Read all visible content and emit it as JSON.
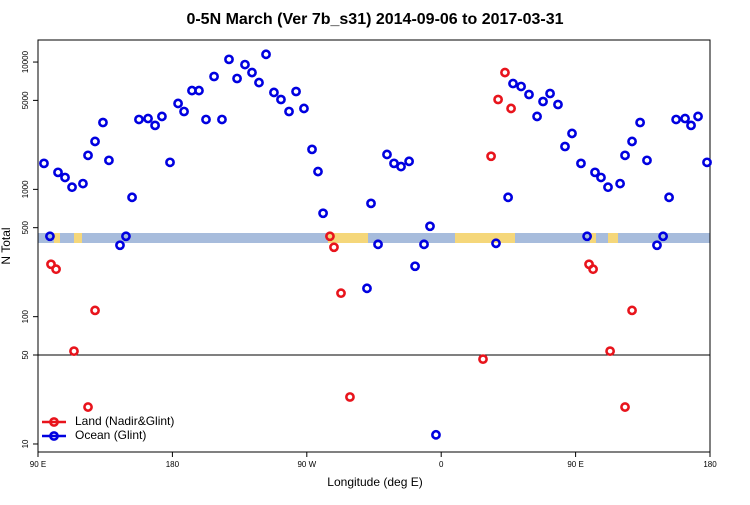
{
  "chart_data": {
    "type": "scatter",
    "title": "0-5N March (Ver 7b_s31)   2014-09-06 to 2017-03-31",
    "x_label": "Longitude (deg E)",
    "y_label": "N Total",
    "log_y": true,
    "legend": "lower left",
    "hline": 50,
    "xlim": [
      90,
      540
    ],
    "ylim": [
      8.65,
      14900
    ],
    "xticks": [
      {
        "value": 90,
        "label": "90 E"
      },
      180,
      {
        "value": 270,
        "label": "90 W"
      },
      {
        "value": 360,
        "label": "0"
      },
      {
        "value": 450,
        "label": "90 E"
      },
      {
        "value": 540,
        "label": "180"
      }
    ],
    "yticks": [
      10,
      50,
      100,
      500,
      1000,
      5000,
      10000
    ],
    "series": [
      {
        "name": "Land (Nadir&Glint)",
        "color": "#e8141c",
        "x": [
          98.7,
          102.1,
          114.1,
          123.5,
          128.2,
          285.5,
          288.2,
          292.9,
          298.9,
          388.0,
          393.4,
          398.1,
          402.7,
          406.8,
          459.0,
          461.7,
          473.1,
          483.1,
          487.8
        ],
        "values": [
          258,
          236,
          53.6,
          19.5,
          112,
          428,
          351,
          153,
          23.4,
          46.4,
          1820,
          5080,
          8270,
          4320,
          258,
          236,
          53.6,
          19.5,
          112
        ]
      },
      {
        "name": "Ocean (Glint)",
        "color": "#0000e0",
        "x": [
          94.0,
          98.0,
          103.4,
          108.1,
          112.8,
          120.1,
          123.5,
          128.2,
          133.5,
          137.5,
          144.9,
          148.9,
          153.0,
          157.6,
          163.7,
          168.4,
          173.0,
          178.4,
          183.8,
          187.8,
          193.1,
          197.8,
          202.5,
          207.9,
          213.2,
          217.9,
          223.3,
          228.6,
          233.3,
          238.0,
          242.7,
          248.0,
          252.7,
          258.1,
          262.8,
          268.1,
          273.5,
          277.5,
          280.9,
          310.3,
          313.0,
          317.7,
          323.7,
          328.4,
          333.1,
          338.5,
          342.5,
          348.5,
          352.5,
          356.5,
          396.7,
          404.8,
          408.1,
          413.5,
          418.8,
          424.2,
          428.2,
          432.9,
          438.2,
          442.9,
          447.6,
          453.6,
          457.7,
          463.0,
          467.0,
          471.7,
          479.8,
          483.1,
          487.8,
          493.2,
          497.8,
          504.5,
          508.6,
          512.6,
          517.3,
          523.3,
          527.3,
          532.0,
          538.0
        ],
        "values": [
          1600,
          428,
          1360,
          1240,
          1040,
          1110,
          1850,
          2380,
          3350,
          1690,
          364,
          428,
          866,
          3540,
          3600,
          3180,
          3740,
          1630,
          4730,
          4090,
          5970,
          5970,
          3540,
          7700,
          3540,
          10500,
          7430,
          9550,
          8270,
          6900,
          11500,
          5770,
          5080,
          4090,
          5870,
          4320,
          2060,
          1380,
          649,
          167,
          776,
          370,
          1880,
          1600,
          1510,
          1660,
          249,
          370,
          513,
          11.8,
          377,
          866,
          6780,
          6430,
          5560,
          3740,
          4900,
          5660,
          4640,
          2170,
          2750,
          1600,
          428,
          1360,
          1240,
          1040,
          1110,
          1850,
          2380,
          3350,
          1690,
          364,
          428,
          866,
          3540,
          3600,
          3180,
          3740,
          1630
        ]
      }
    ]
  }
}
